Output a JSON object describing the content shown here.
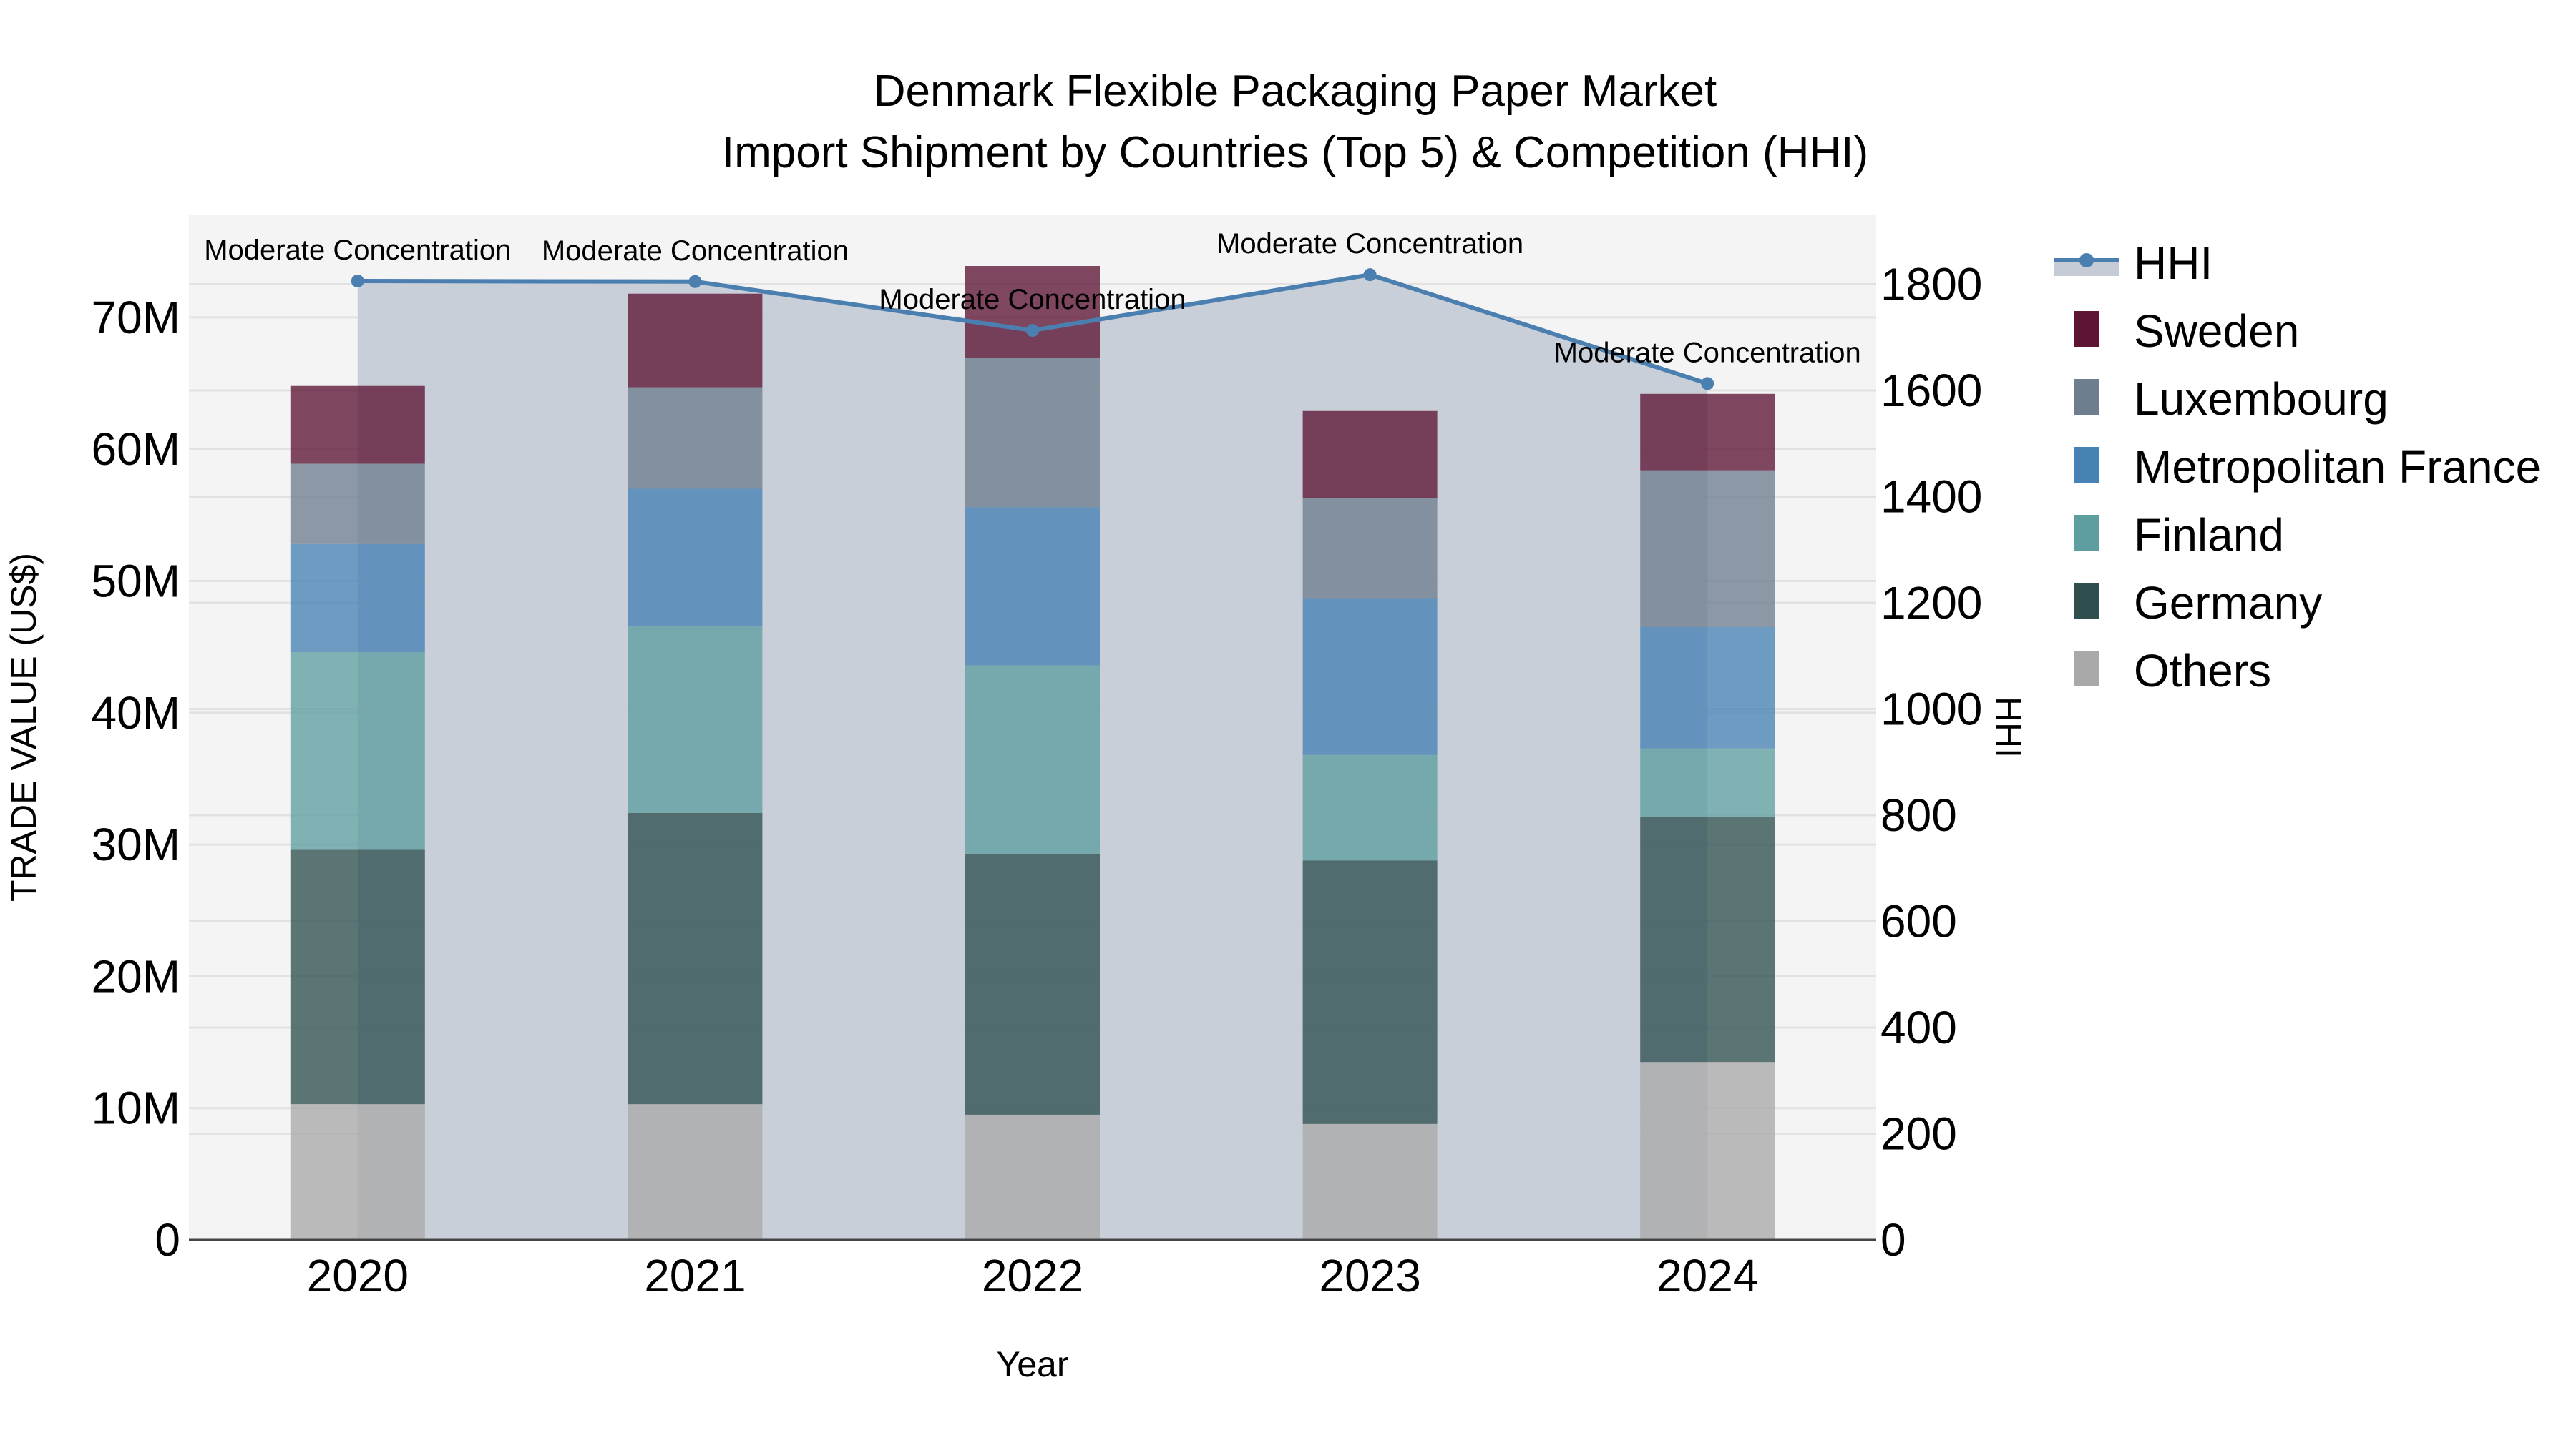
{
  "title": {
    "line1": "Denmark Flexible Packaging Paper Market",
    "line2": "Import Shipment by Countries (Top 5) & Competition (HHI)"
  },
  "colors": {
    "plot_bg": "#f4f4f4",
    "grid": "#e2e2e2",
    "hhi_line": "#4a7fb0",
    "hhi_fill": "#c6ccd6",
    "Sweden": "#5e1434",
    "Luxembourg": "#6e7e8e",
    "Metropolitan France": "#4682b4",
    "Finland": "#5f9ea0",
    "Germany": "#2f4f4f",
    "Others": "#a9a9a9"
  },
  "legend": {
    "items": [
      {
        "label": "HHI",
        "type": "line"
      },
      {
        "label": "Sweden",
        "type": "bar"
      },
      {
        "label": "Luxembourg",
        "type": "bar"
      },
      {
        "label": "Metropolitan France",
        "type": "bar"
      },
      {
        "label": "Finland",
        "type": "bar"
      },
      {
        "label": "Germany",
        "type": "bar"
      },
      {
        "label": "Others",
        "type": "bar"
      }
    ]
  },
  "chart_data": {
    "type": "bar",
    "stacked": true,
    "title": "Denmark Flexible Packaging Paper Market\nImport Shipment by Countries (Top 5) & Competition (HHI)",
    "xlabel": "Year",
    "ylabel": "TRADE VALUE (US$)",
    "y2label": "HHI",
    "categories": [
      "2020",
      "2021",
      "2022",
      "2023",
      "2024"
    ],
    "series": [
      {
        "name": "Others",
        "values": [
          10.3,
          10.3,
          9.5,
          8.8,
          13.5
        ],
        "unit": "M US$"
      },
      {
        "name": "Germany",
        "values": [
          19.3,
          22.1,
          19.8,
          20.0,
          18.6
        ],
        "unit": "M US$"
      },
      {
        "name": "Finland",
        "values": [
          15.0,
          14.2,
          14.3,
          8.0,
          5.2
        ],
        "unit": "M US$"
      },
      {
        "name": "Metropolitan France",
        "values": [
          8.2,
          10.4,
          12.0,
          11.9,
          9.2
        ],
        "unit": "M US$"
      },
      {
        "name": "Luxembourg",
        "values": [
          6.1,
          7.7,
          11.3,
          7.6,
          11.9
        ],
        "unit": "M US$"
      },
      {
        "name": "Sweden",
        "values": [
          5.9,
          7.1,
          7.0,
          6.6,
          5.8
        ],
        "unit": "M US$"
      }
    ],
    "line_series": {
      "name": "HHI",
      "axis": "y2",
      "values": [
        1806,
        1805,
        1713,
        1818,
        1613
      ],
      "annotations": [
        "Moderate Concentration",
        "Moderate Concentration",
        "Moderate Concentration",
        "Moderate Concentration",
        "Moderate Concentration"
      ]
    },
    "yticks": [
      "0",
      "10M",
      "20M",
      "30M",
      "40M",
      "50M",
      "60M",
      "70M"
    ],
    "y2ticks": [
      "0",
      "200",
      "400",
      "600",
      "800",
      "1000",
      "1200",
      "1400",
      "1600",
      "1800"
    ],
    "ylim": [
      0,
      78
    ],
    "y2lim": [
      0,
      1930
    ],
    "grid": true,
    "legend_position": "right"
  }
}
